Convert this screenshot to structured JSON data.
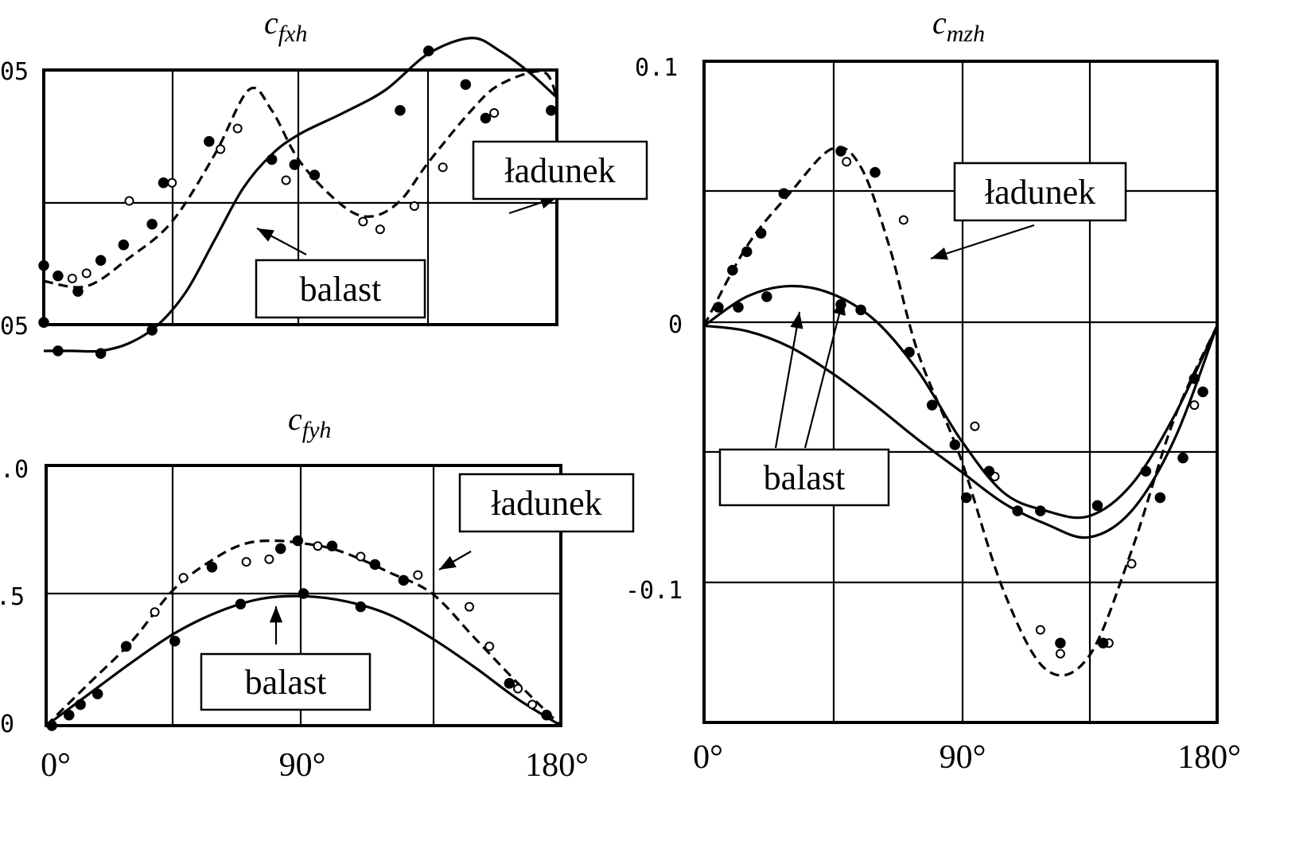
{
  "chart_data": [
    {
      "id": "cfxh",
      "type": "line",
      "title": "cfxh",
      "title_main": "c",
      "title_sub": "fxh",
      "x_tick_labels": [
        "0°",
        "90°",
        "180°"
      ],
      "xlim": [
        0,
        180
      ],
      "ylim": [
        -0.05,
        0.05
      ],
      "y_tick_labels": [
        "05",
        "0",
        "05"
      ],
      "grid": true,
      "series": [
        {
          "name": "ładunek",
          "style": "dashed",
          "x": [
            0,
            15,
            30,
            45,
            60,
            72,
            80,
            90,
            105,
            115,
            125,
            135,
            150,
            160,
            175,
            180
          ],
          "y": [
            -0.031,
            -0.033,
            -0.022,
            -0.008,
            0.018,
            0.043,
            0.035,
            0.015,
            -0.002,
            -0.006,
            0.0,
            0.015,
            0.035,
            0.045,
            0.05,
            0.04
          ]
        },
        {
          "name": "balast",
          "style": "solid",
          "x": [
            0,
            10,
            20,
            30,
            40,
            50,
            60,
            70,
            80,
            90,
            105,
            120,
            135,
            150,
            160,
            170,
            180
          ],
          "y": [
            -0.058,
            -0.058,
            -0.058,
            -0.055,
            -0.048,
            -0.035,
            -0.015,
            0.005,
            0.018,
            0.026,
            0.034,
            0.043,
            0.057,
            0.063,
            0.058,
            0.05,
            0.04
          ]
        }
      ],
      "markers_open": [
        [
          10,
          -0.03
        ],
        [
          15,
          -0.028
        ],
        [
          30,
          0.0
        ],
        [
          45,
          0.007
        ],
        [
          62,
          0.02
        ],
        [
          68,
          0.028
        ],
        [
          85,
          0.008
        ],
        [
          112,
          -0.008
        ],
        [
          118,
          -0.011
        ],
        [
          130,
          -0.002
        ],
        [
          140,
          0.013
        ],
        [
          158,
          0.034
        ]
      ],
      "markers_filled": [
        [
          0,
          -0.025
        ],
        [
          0,
          -0.047
        ],
        [
          5,
          -0.029
        ],
        [
          12,
          -0.035
        ],
        [
          20,
          -0.023
        ],
        [
          28,
          -0.017
        ],
        [
          38,
          -0.009
        ],
        [
          42,
          0.007
        ],
        [
          58,
          0.023
        ],
        [
          80,
          0.016
        ],
        [
          88,
          0.014
        ],
        [
          95,
          0.01
        ],
        [
          125,
          0.035
        ],
        [
          135,
          0.058
        ],
        [
          148,
          0.045
        ],
        [
          155,
          0.032
        ],
        [
          178,
          0.035
        ],
        [
          5,
          -0.058
        ],
        [
          20,
          -0.059
        ],
        [
          38,
          -0.05
        ]
      ],
      "annotations": [
        {
          "text": "ładunek"
        },
        {
          "text": "balast"
        }
      ]
    },
    {
      "id": "cfyh",
      "type": "line",
      "title": "cfyh",
      "title_main": "c",
      "title_sub": "fyh",
      "x_tick_labels": [
        "0°",
        "90°",
        "180°"
      ],
      "xlim": [
        0,
        180
      ],
      "ylim": [
        0,
        1.0
      ],
      "y_tick_labels": [
        ".0",
        ".5",
        "0"
      ],
      "grid": true,
      "series": [
        {
          "name": "ładunek",
          "style": "dashed",
          "x": [
            0,
            15,
            30,
            45,
            60,
            70,
            80,
            90,
            100,
            110,
            120,
            135,
            150,
            165,
            180
          ],
          "y": [
            0.0,
            0.16,
            0.32,
            0.52,
            0.64,
            0.69,
            0.7,
            0.69,
            0.67,
            0.63,
            0.58,
            0.5,
            0.33,
            0.16,
            0.0
          ]
        },
        {
          "name": "balast",
          "style": "solid",
          "x": [
            0,
            15,
            30,
            45,
            60,
            75,
            90,
            105,
            120,
            135,
            150,
            165,
            180
          ],
          "y": [
            0.0,
            0.12,
            0.24,
            0.35,
            0.43,
            0.48,
            0.49,
            0.47,
            0.42,
            0.33,
            0.22,
            0.1,
            0.0
          ]
        }
      ],
      "markers_open": [
        [
          38,
          0.43
        ],
        [
          48,
          0.56
        ],
        [
          70,
          0.62
        ],
        [
          78,
          0.63
        ],
        [
          95,
          0.68
        ],
        [
          110,
          0.64
        ],
        [
          130,
          0.57
        ],
        [
          148,
          0.45
        ],
        [
          155,
          0.3
        ],
        [
          165,
          0.14
        ],
        [
          170,
          0.08
        ]
      ],
      "markers_filled": [
        [
          2,
          0.0
        ],
        [
          8,
          0.04
        ],
        [
          12,
          0.08
        ],
        [
          18,
          0.12
        ],
        [
          28,
          0.3
        ],
        [
          45,
          0.32
        ],
        [
          58,
          0.6
        ],
        [
          82,
          0.67
        ],
        [
          88,
          0.7
        ],
        [
          100,
          0.68
        ],
        [
          115,
          0.61
        ],
        [
          125,
          0.55
        ],
        [
          68,
          0.46
        ],
        [
          90,
          0.5
        ],
        [
          110,
          0.45
        ],
        [
          162,
          0.16
        ],
        [
          175,
          0.04
        ]
      ],
      "annotations": [
        {
          "text": "ładunek"
        },
        {
          "text": "balast"
        }
      ]
    },
    {
      "id": "cmzh",
      "type": "line",
      "title": "cmzh",
      "title_main": "c",
      "title_sub": "mzh",
      "x_tick_labels": [
        "0°",
        "90°",
        "180°"
      ],
      "xlim": [
        0,
        180
      ],
      "ylim": [
        -0.15,
        0.1
      ],
      "y_tick_labels": [
        "0.1",
        "0",
        "-0.1"
      ],
      "grid": true,
      "series": [
        {
          "name": "ładunek",
          "style": "dashed",
          "x": [
            0,
            15,
            30,
            45,
            55,
            65,
            75,
            90,
            105,
            120,
            135,
            150,
            165,
            180
          ],
          "y": [
            0.0,
            0.03,
            0.05,
            0.067,
            0.06,
            0.03,
            -0.01,
            -0.05,
            -0.1,
            -0.13,
            -0.125,
            -0.085,
            -0.035,
            0.0
          ]
        },
        {
          "name": "balast",
          "style": "solid",
          "x": [
            0,
            15,
            30,
            45,
            60,
            75,
            90,
            105,
            120,
            135,
            150,
            165,
            180
          ],
          "y": [
            0.0,
            0.011,
            0.015,
            0.012,
            0.002,
            -0.017,
            -0.043,
            -0.063,
            -0.07,
            -0.072,
            -0.06,
            -0.034,
            0.0
          ]
        },
        {
          "name": "balast",
          "style": "solid",
          "x": [
            0,
            15,
            30,
            45,
            60,
            75,
            90,
            105,
            120,
            135,
            150,
            165,
            180
          ],
          "y": [
            0.0,
            -0.002,
            -0.008,
            -0.018,
            -0.03,
            -0.043,
            -0.055,
            -0.067,
            -0.075,
            -0.08,
            -0.07,
            -0.043,
            0.0
          ]
        }
      ],
      "markers_open": [
        [
          50,
          0.062
        ],
        [
          70,
          0.04
        ],
        [
          95,
          -0.038
        ],
        [
          102,
          -0.057
        ],
        [
          118,
          -0.115
        ],
        [
          125,
          -0.124
        ],
        [
          142,
          -0.12
        ],
        [
          150,
          -0.09
        ],
        [
          172,
          -0.03
        ]
      ],
      "markers_filled": [
        [
          5,
          0.007
        ],
        [
          10,
          0.021
        ],
        [
          15,
          0.028
        ],
        [
          20,
          0.035
        ],
        [
          28,
          0.05
        ],
        [
          48,
          0.066
        ],
        [
          60,
          0.058
        ],
        [
          80,
          -0.03
        ],
        [
          88,
          -0.045
        ],
        [
          92,
          -0.065
        ],
        [
          100,
          -0.055
        ],
        [
          110,
          -0.07
        ],
        [
          125,
          -0.12
        ],
        [
          140,
          -0.12
        ],
        [
          160,
          -0.065
        ],
        [
          168,
          -0.05
        ],
        [
          175,
          -0.025
        ],
        [
          12,
          0.007
        ],
        [
          22,
          0.011
        ],
        [
          48,
          0.008
        ],
        [
          55,
          0.006
        ],
        [
          72,
          -0.01
        ],
        [
          118,
          -0.07
        ],
        [
          138,
          -0.068
        ],
        [
          155,
          -0.055
        ],
        [
          172,
          -0.02
        ]
      ],
      "annotations": [
        {
          "text": "ładunek"
        },
        {
          "text": "balast"
        }
      ]
    }
  ]
}
